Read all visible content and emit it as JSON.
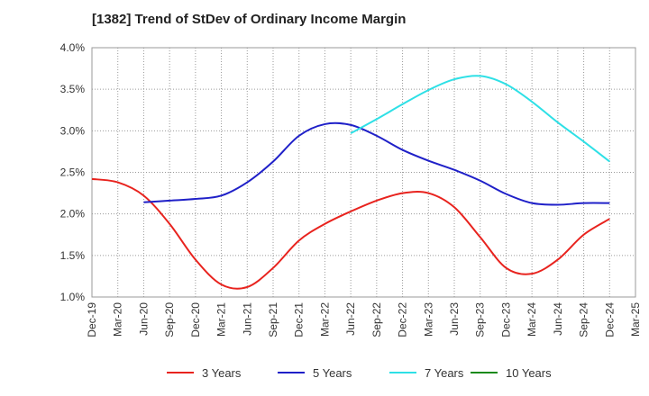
{
  "title": "[1382]  Trend of StDev of Ordinary Income Margin",
  "chart_data": {
    "type": "line",
    "title": "[1382]  Trend of StDev of Ordinary Income Margin",
    "xlabel": "",
    "ylabel": "",
    "x_ticks": [
      "Dec-19",
      "Mar-20",
      "Jun-20",
      "Sep-20",
      "Dec-20",
      "Mar-21",
      "Jun-21",
      "Sep-21",
      "Dec-21",
      "Mar-22",
      "Jun-22",
      "Sep-22",
      "Dec-22",
      "Mar-23",
      "Jun-23",
      "Sep-23",
      "Dec-23",
      "Mar-24",
      "Jun-24",
      "Sep-24",
      "Dec-24",
      "Mar-25"
    ],
    "y_ticks": [
      "1.0%",
      "1.5%",
      "2.0%",
      "2.5%",
      "3.0%",
      "3.5%",
      "4.0%"
    ],
    "ylim": [
      1.0,
      4.0
    ],
    "y_unit": "%",
    "grid": true,
    "legend_position": "bottom",
    "series": [
      {
        "name": "3 Years",
        "color": "#e8231e",
        "x": [
          "Dec-19",
          "Mar-20",
          "Jun-20",
          "Sep-20",
          "Dec-20",
          "Mar-21",
          "Jun-21",
          "Sep-21",
          "Dec-21",
          "Mar-22",
          "Jun-22",
          "Sep-22",
          "Dec-22",
          "Mar-23",
          "Jun-23",
          "Sep-23",
          "Dec-23",
          "Mar-24",
          "Jun-24",
          "Sep-24",
          "Dec-24"
        ],
        "values": [
          2.42,
          2.38,
          2.22,
          1.88,
          1.45,
          1.15,
          1.12,
          1.35,
          1.68,
          1.88,
          2.03,
          2.16,
          2.25,
          2.25,
          2.08,
          1.72,
          1.35,
          1.28,
          1.45,
          1.75,
          1.94
        ]
      },
      {
        "name": "5 Years",
        "color": "#1f20c8",
        "x": [
          "Jun-20",
          "Sep-20",
          "Dec-20",
          "Mar-21",
          "Jun-21",
          "Sep-21",
          "Dec-21",
          "Mar-22",
          "Jun-22",
          "Sep-22",
          "Dec-22",
          "Mar-23",
          "Jun-23",
          "Sep-23",
          "Dec-23",
          "Mar-24",
          "Jun-24",
          "Sep-24",
          "Dec-24"
        ],
        "values": [
          2.14,
          2.16,
          2.18,
          2.22,
          2.38,
          2.63,
          2.94,
          3.08,
          3.07,
          2.94,
          2.77,
          2.64,
          2.53,
          2.4,
          2.24,
          2.13,
          2.11,
          2.13,
          2.13
        ]
      },
      {
        "name": "7 Years",
        "color": "#2ee0e6",
        "x": [
          "Jun-22",
          "Sep-22",
          "Dec-22",
          "Mar-23",
          "Jun-23",
          "Sep-23",
          "Dec-23",
          "Mar-24",
          "Jun-24",
          "Sep-24",
          "Dec-24"
        ],
        "values": [
          2.97,
          3.14,
          3.32,
          3.49,
          3.62,
          3.66,
          3.56,
          3.35,
          3.1,
          2.87,
          2.63
        ]
      },
      {
        "name": "10 Years",
        "color": "#1a8a1a",
        "x": [],
        "values": []
      }
    ]
  }
}
